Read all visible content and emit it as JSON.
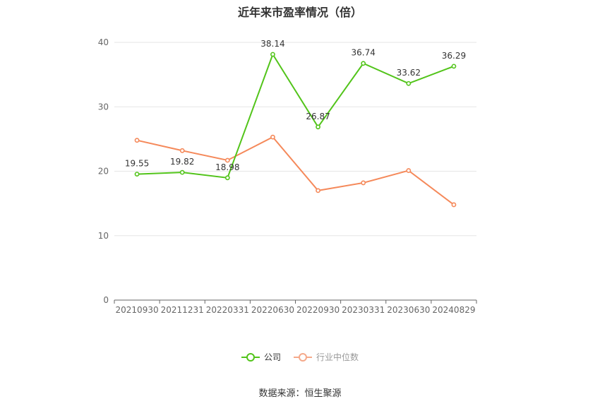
{
  "chart_data": {
    "type": "line",
    "title": "近年来市盈率情况（倍）",
    "categories": [
      "20210930",
      "20211231",
      "20220331",
      "20220630",
      "20220930",
      "20230331",
      "20230630",
      "20240829"
    ],
    "series": [
      {
        "name": "公司",
        "color": "#52c41a",
        "values": [
          19.55,
          19.82,
          18.98,
          38.14,
          26.87,
          36.74,
          33.62,
          36.29
        ],
        "labels": [
          "19.55",
          "19.82",
          "18.98",
          "38.14",
          "26.87",
          "36.74",
          "33.62",
          "36.29"
        ]
      },
      {
        "name": "行业中位数",
        "color": "#f5895a",
        "values": [
          24.8,
          23.2,
          21.7,
          25.3,
          17.0,
          18.2,
          20.1,
          14.8
        ]
      }
    ],
    "ylim": [
      0,
      40
    ],
    "yticks": [
      "0",
      "10",
      "20",
      "30",
      "40"
    ],
    "grid": true,
    "legend_position": "bottom"
  },
  "source_text": "数据来源：恒生聚源"
}
